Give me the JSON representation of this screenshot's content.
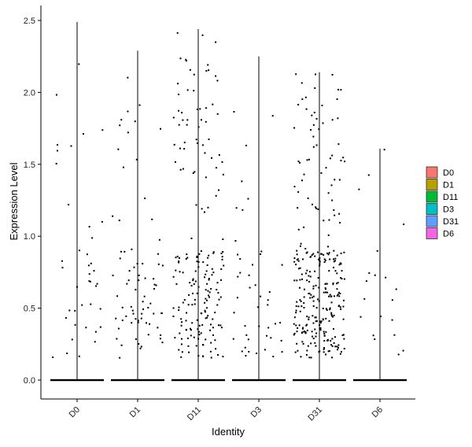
{
  "chart_data": {
    "type": "violin-jitter",
    "title": "",
    "xlabel": "Identity",
    "ylabel": "Expression Level",
    "categories": [
      "D0",
      "D1",
      "D11",
      "D3",
      "D31",
      "D6"
    ],
    "ylim": [
      -0.1,
      2.55
    ],
    "yticks": [
      0.0,
      0.5,
      1.0,
      1.5,
      2.0,
      2.5
    ],
    "ytick_labels": [
      "0.0",
      "0.5",
      "1.0",
      "1.5",
      "2.0",
      "2.5"
    ],
    "max_values": [
      2.49,
      2.29,
      2.44,
      2.25,
      2.14,
      1.61
    ],
    "nonzero_counts": [
      40,
      75,
      200,
      45,
      300,
      20
    ],
    "jitter_width": 0.45,
    "grid": false,
    "legend": {
      "position": "right",
      "entries": [
        {
          "label": "D0",
          "color": "#F8766D"
        },
        {
          "label": "D1",
          "color": "#B79F00"
        },
        {
          "label": "D11",
          "color": "#00BA38"
        },
        {
          "label": "D3",
          "color": "#00BFC4"
        },
        {
          "label": "D31",
          "color": "#619CFF"
        },
        {
          "label": "D6",
          "color": "#F564E3"
        }
      ]
    },
    "point_color": "#000000",
    "violin_fill": "#ffffff"
  }
}
